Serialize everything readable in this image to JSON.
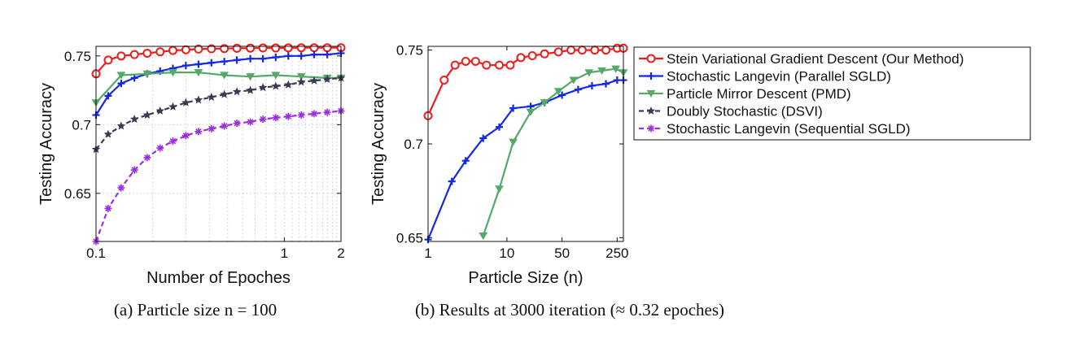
{
  "legend": {
    "entries": [
      {
        "key": "svgd",
        "label": "Stein Variational Gradient Descent (Our Method)"
      },
      {
        "key": "psgld",
        "label": "Stochastic Langevin (Parallel SGLD)"
      },
      {
        "key": "pmd",
        "label": "Particle Mirror Descent (PMD)"
      },
      {
        "key": "dsvi",
        "label": "Doubly Stochastic (DSVI)"
      },
      {
        "key": "ssgld",
        "label": "Stochastic Langevin (Sequential SGLD)"
      }
    ]
  },
  "styles": {
    "svgd": {
      "color": "#ee1c1c",
      "marker": "circle",
      "dash": "solid"
    },
    "psgld": {
      "color": "#1428e6",
      "marker": "plus",
      "dash": "solid"
    },
    "pmd": {
      "color": "#55a868",
      "marker": "triangle-down",
      "dash": "solid"
    },
    "dsvi": {
      "color": "#3a3a55",
      "marker": "star",
      "dash": "dashed"
    },
    "ssgld": {
      "color": "#9b30e0",
      "marker": "asterisk",
      "dash": "dashed"
    }
  },
  "chart_data": [
    {
      "type": "line",
      "caption": "(a) Particle size n = 100",
      "xlabel": "Number of Epoches",
      "ylabel": "Testing Accuracy",
      "xscale": "log",
      "xlim": [
        0.1,
        2
      ],
      "ylim": [
        0.615,
        0.757
      ],
      "xticks": [
        {
          "v": 0.1,
          "label": "0.1"
        },
        {
          "v": 1,
          "label": "1"
        },
        {
          "v": 2,
          "label": "2"
        }
      ],
      "yticks": [
        {
          "v": 0.65,
          "label": "0.65"
        },
        {
          "v": 0.7,
          "label": "0.7"
        },
        {
          "v": 0.75,
          "label": "0.75"
        }
      ],
      "grid": true,
      "series": [
        {
          "key": "svgd",
          "x": [
            0.1,
            0.116,
            0.136,
            0.16,
            0.187,
            0.219,
            0.256,
            0.3,
            0.35,
            0.41,
            0.48,
            0.56,
            0.66,
            0.77,
            0.9,
            1.05,
            1.23,
            1.44,
            1.69,
            2.0
          ],
          "y": [
            0.737,
            0.747,
            0.75,
            0.751,
            0.752,
            0.753,
            0.754,
            0.7545,
            0.755,
            0.7552,
            0.7554,
            0.7556,
            0.7557,
            0.7558,
            0.7558,
            0.7559,
            0.756,
            0.756,
            0.756,
            0.756
          ]
        },
        {
          "key": "psgld",
          "x": [
            0.1,
            0.116,
            0.136,
            0.16,
            0.187,
            0.219,
            0.256,
            0.3,
            0.35,
            0.41,
            0.48,
            0.56,
            0.66,
            0.77,
            0.9,
            1.05,
            1.23,
            1.44,
            1.69,
            2.0
          ],
          "y": [
            0.707,
            0.721,
            0.73,
            0.734,
            0.737,
            0.739,
            0.741,
            0.743,
            0.744,
            0.745,
            0.746,
            0.747,
            0.748,
            0.748,
            0.749,
            0.75,
            0.75,
            0.751,
            0.751,
            0.752
          ]
        },
        {
          "key": "pmd",
          "x": [
            0.1,
            0.136,
            0.187,
            0.256,
            0.35,
            0.48,
            0.66,
            0.9,
            1.23,
            1.69,
            2.0
          ],
          "y": [
            0.716,
            0.736,
            0.737,
            0.738,
            0.738,
            0.736,
            0.735,
            0.736,
            0.735,
            0.734,
            0.734
          ]
        },
        {
          "key": "dsvi",
          "x": [
            0.1,
            0.116,
            0.136,
            0.16,
            0.187,
            0.219,
            0.256,
            0.3,
            0.35,
            0.41,
            0.48,
            0.56,
            0.66,
            0.77,
            0.9,
            1.05,
            1.23,
            1.44,
            1.69,
            2.0
          ],
          "y": [
            0.682,
            0.693,
            0.699,
            0.704,
            0.707,
            0.71,
            0.713,
            0.716,
            0.718,
            0.72,
            0.722,
            0.724,
            0.725,
            0.727,
            0.728,
            0.729,
            0.731,
            0.732,
            0.733,
            0.734
          ]
        },
        {
          "key": "ssgld",
          "x": [
            0.1,
            0.116,
            0.136,
            0.16,
            0.187,
            0.219,
            0.256,
            0.3,
            0.35,
            0.41,
            0.48,
            0.56,
            0.66,
            0.77,
            0.9,
            1.05,
            1.23,
            1.44,
            1.69,
            2.0
          ],
          "y": [
            0.615,
            0.639,
            0.654,
            0.667,
            0.676,
            0.683,
            0.688,
            0.692,
            0.695,
            0.697,
            0.699,
            0.701,
            0.702,
            0.704,
            0.705,
            0.706,
            0.707,
            0.708,
            0.709,
            0.71
          ]
        }
      ]
    },
    {
      "type": "line",
      "caption": "(b) Results at 3000 iteration (≈ 0.32 epoches)",
      "xlabel": "Particle Size (n)",
      "ylabel": "Testing Accuracy",
      "xscale": "log",
      "xlim": [
        1,
        300
      ],
      "ylim": [
        0.648,
        0.752
      ],
      "xticks": [
        {
          "v": 1,
          "label": "1"
        },
        {
          "v": 10,
          "label": "10"
        },
        {
          "v": 50,
          "label": "50"
        },
        {
          "v": 250,
          "label": "250"
        }
      ],
      "yticks": [
        {
          "v": 0.65,
          "label": "0.65"
        },
        {
          "v": 0.7,
          "label": "0.7"
        },
        {
          "v": 0.75,
          "label": "0.75"
        }
      ],
      "grid": false,
      "series": [
        {
          "key": "svgd",
          "x": [
            1,
            1.6,
            2.2,
            3,
            4,
            5.5,
            8,
            11,
            15,
            21,
            30,
            45,
            65,
            90,
            130,
            180,
            250,
            300
          ],
          "y": [
            0.715,
            0.734,
            0.742,
            0.744,
            0.744,
            0.742,
            0.742,
            0.742,
            0.746,
            0.747,
            0.748,
            0.749,
            0.75,
            0.75,
            0.75,
            0.75,
            0.751,
            0.751
          ]
        },
        {
          "key": "psgld",
          "x": [
            1,
            2,
            3,
            5,
            8,
            12,
            20,
            30,
            50,
            80,
            120,
            180,
            250,
            300
          ],
          "y": [
            0.649,
            0.68,
            0.691,
            0.703,
            0.709,
            0.719,
            0.72,
            0.722,
            0.726,
            0.729,
            0.731,
            0.732,
            0.734,
            0.734
          ]
        },
        {
          "key": "pmd",
          "x": [
            5,
            8,
            12,
            20,
            30,
            45,
            70,
            110,
            160,
            240,
            300
          ],
          "y": [
            0.651,
            0.676,
            0.701,
            0.717,
            0.722,
            0.728,
            0.734,
            0.738,
            0.739,
            0.74,
            0.738
          ]
        }
      ]
    }
  ]
}
